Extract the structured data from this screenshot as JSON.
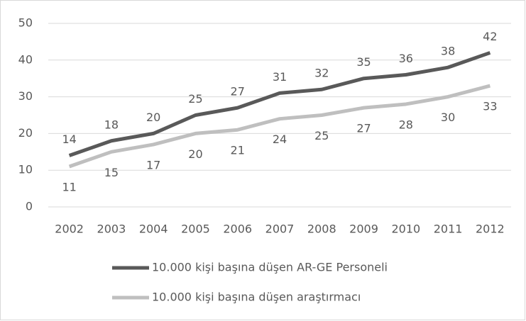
{
  "chart_data": {
    "type": "line",
    "categories": [
      "2002",
      "2003",
      "2004",
      "2005",
      "2006",
      "2007",
      "2008",
      "2009",
      "2010",
      "2011",
      "2012"
    ],
    "series": [
      {
        "name": "10.000 kişi başına düşen AR-GE Personeli",
        "color": "#595959",
        "values": [
          14,
          18,
          20,
          25,
          27,
          31,
          32,
          35,
          36,
          38,
          42
        ]
      },
      {
        "name": "10.000 kişi başına düşen araştırmacı",
        "color": "#bfbfbf",
        "values": [
          11,
          15,
          17,
          20,
          21,
          24,
          25,
          27,
          28,
          30,
          33
        ]
      }
    ],
    "ylim": [
      0,
      50
    ],
    "yticks": [
      0,
      10,
      20,
      30,
      40,
      50
    ],
    "grid": true,
    "legend": "bottom"
  }
}
